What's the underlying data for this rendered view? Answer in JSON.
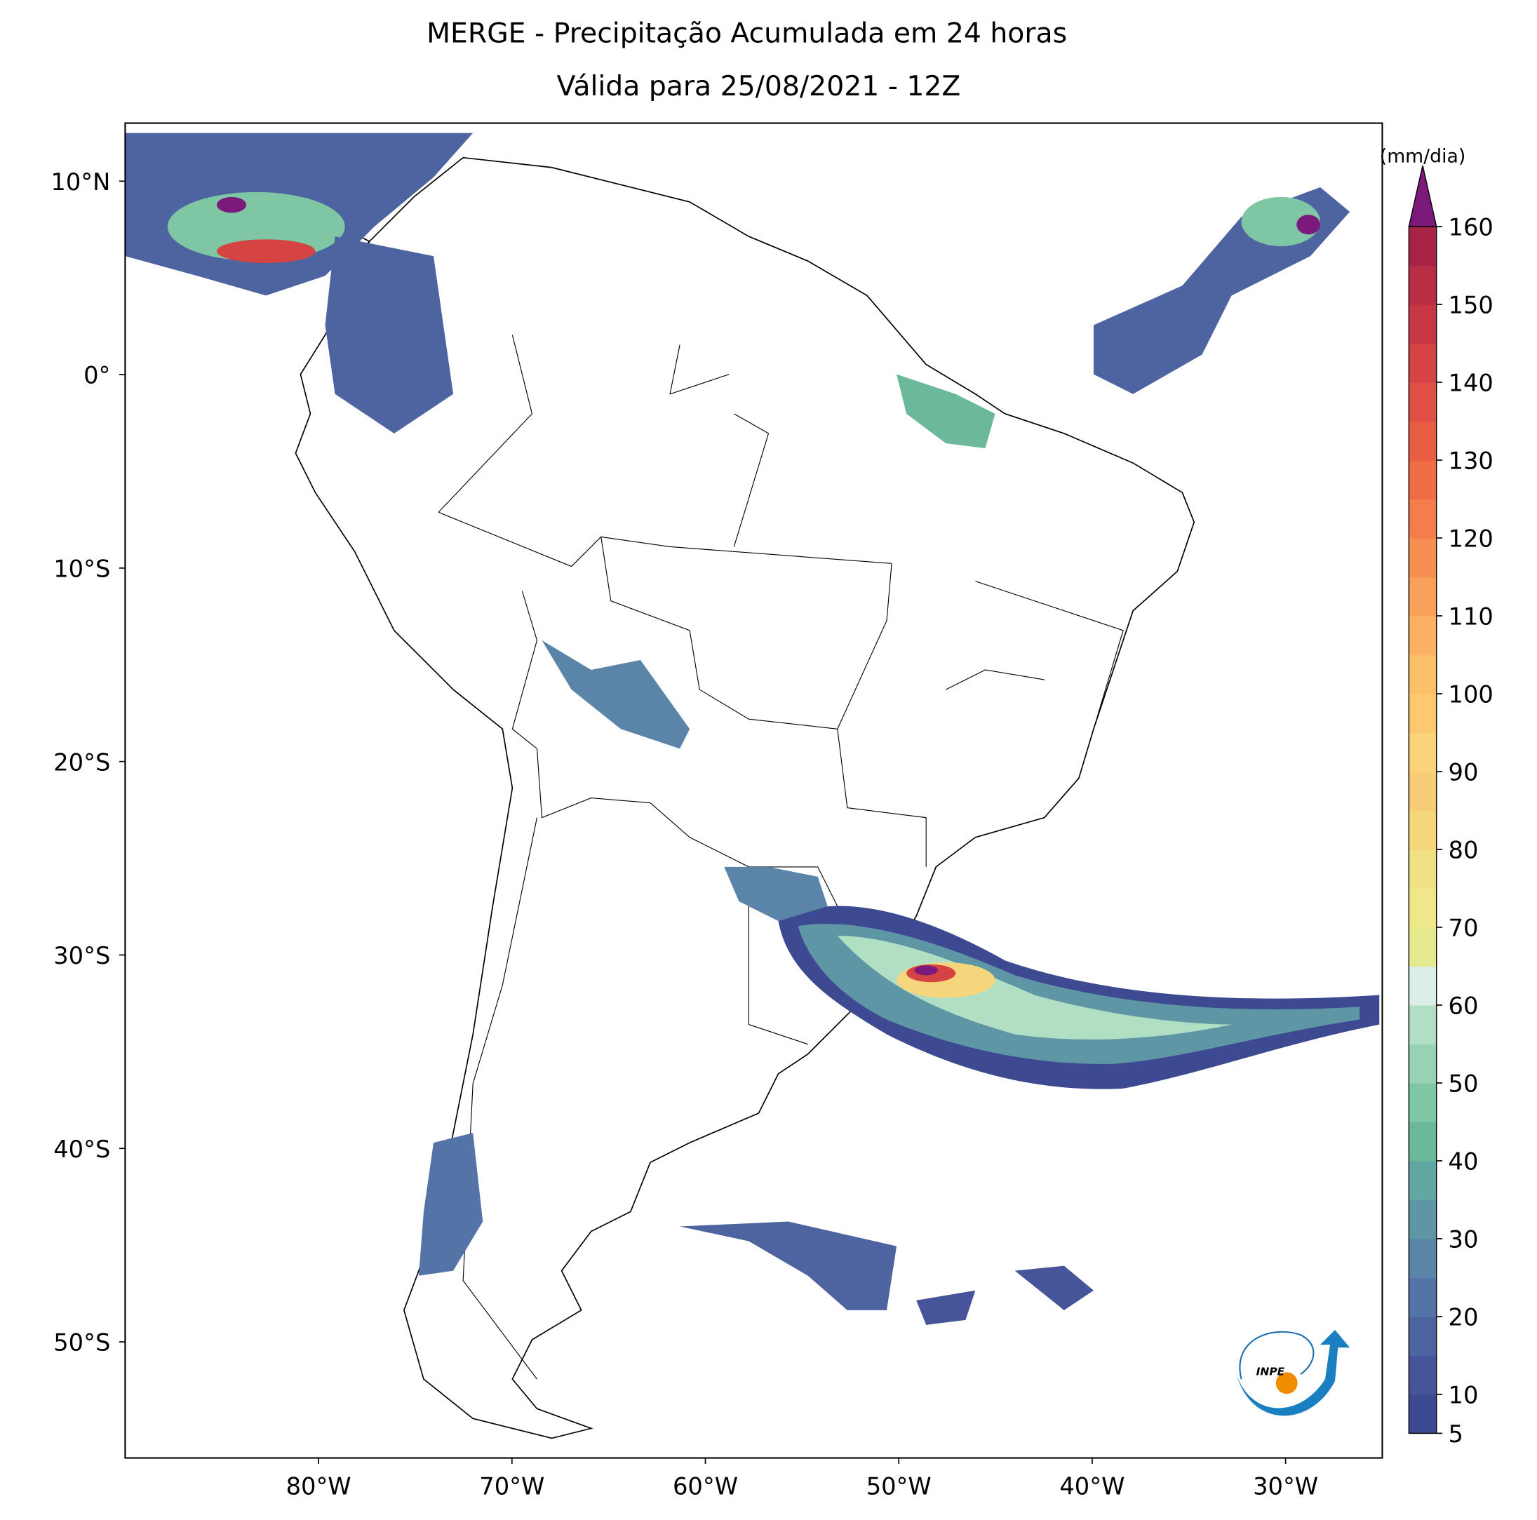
{
  "title": "MERGE - Precipitação Acumulada em 24 horas",
  "subtitle": "Válida para 25/08/2021 - 12Z",
  "map": {
    "lon_range": [
      -90,
      -25
    ],
    "lat_range": [
      13,
      -56
    ],
    "lat_ticks": [
      {
        "value": 10,
        "label": "10°N"
      },
      {
        "value": 0,
        "label": "0°"
      },
      {
        "value": -10,
        "label": "10°S"
      },
      {
        "value": -20,
        "label": "20°S"
      },
      {
        "value": -30,
        "label": "30°S"
      },
      {
        "value": -40,
        "label": "40°S"
      },
      {
        "value": -50,
        "label": "50°S"
      }
    ],
    "lon_ticks": [
      {
        "value": -80,
        "label": "80°W"
      },
      {
        "value": -70,
        "label": "70°W"
      },
      {
        "value": -60,
        "label": "60°W"
      },
      {
        "value": -50,
        "label": "50°W"
      },
      {
        "value": -40,
        "label": "40°W"
      },
      {
        "value": -30,
        "label": "30°W"
      }
    ]
  },
  "colorbar": {
    "label": "(mm/dia)",
    "levels": [
      5,
      10,
      15,
      20,
      25,
      30,
      35,
      40,
      45,
      50,
      55,
      60,
      65,
      70,
      75,
      80,
      85,
      90,
      95,
      100,
      105,
      110,
      115,
      120,
      125,
      130,
      135,
      140,
      145,
      150,
      155,
      160
    ],
    "colors": [
      "#3d4a92",
      "#46549a",
      "#4e64a1",
      "#5473a6",
      "#5a84a8",
      "#5e96a6",
      "#62a7a3",
      "#6bb89b",
      "#7fc6a4",
      "#97d2b3",
      "#b1dfc4",
      "#dbeee8",
      "#e6ea8f",
      "#eee88a",
      "#f2e084",
      "#f6d67c",
      "#f8cc76",
      "#fbd37a",
      "#fcc870",
      "#fcc06a",
      "#fbb062",
      "#f9a05a",
      "#f78f52",
      "#f47d4c",
      "#f06c46",
      "#e95d44",
      "#e04f43",
      "#d54343",
      "#c73744",
      "#b92d45",
      "#a82447"
    ],
    "extend_color": "#7b1a7a",
    "ticks": [
      5,
      10,
      20,
      30,
      40,
      50,
      60,
      70,
      80,
      90,
      100,
      110,
      120,
      130,
      140,
      150,
      160
    ]
  }
}
